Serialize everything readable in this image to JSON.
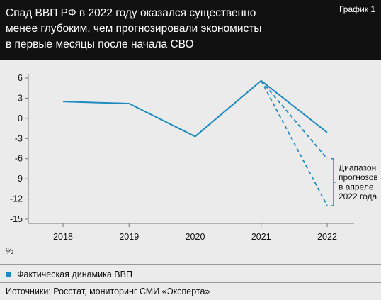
{
  "header": {
    "title_lines": [
      "Спад ВВП РФ в 2022 году оказался существенно",
      "менее глубоким, чем прогнозировали экономисты",
      "в первые месяцы после начала СВО"
    ],
    "badge": "График 1"
  },
  "chart_data": {
    "type": "line",
    "title": "Спад ВВП РФ в 2022 году оказался существенно менее глубоким, чем прогнозировали экономисты в первые месяцы после начала СВО",
    "x": [
      "2018",
      "2019",
      "2020",
      "2021",
      "2022"
    ],
    "y_ticks": [
      6,
      3,
      0,
      -3,
      -6,
      -9,
      -12,
      -15
    ],
    "ylim": [
      -15,
      6
    ],
    "ylabel": "%",
    "grid": false,
    "series": [
      {
        "name": "Фактическая динамика ВВП",
        "style": "solid",
        "x": [
          "2018",
          "2019",
          "2020",
          "2021",
          "2022"
        ],
        "values": [
          2.5,
          2.2,
          -2.7,
          5.6,
          -2.1
        ]
      },
      {
        "style": "dashed",
        "x": [
          "2021",
          "2022"
        ],
        "values": [
          5.6,
          -6.0
        ]
      },
      {
        "style": "dashed",
        "x": [
          "2021",
          "2022"
        ],
        "values": [
          5.6,
          -13.0
        ]
      }
    ],
    "annotation": {
      "lines": [
        "Диапазон",
        "прогнозов",
        "в апреле",
        "2022 года"
      ],
      "range": [
        -13.0,
        -6.0
      ]
    },
    "colors": {
      "line": "#1f8ac0",
      "axis": "#777777",
      "text": "#111111"
    }
  },
  "legend": {
    "label": "Фактическая динамика ВВП"
  },
  "source": "Источники: Росстат, мониторинг СМИ «Эксперта»"
}
